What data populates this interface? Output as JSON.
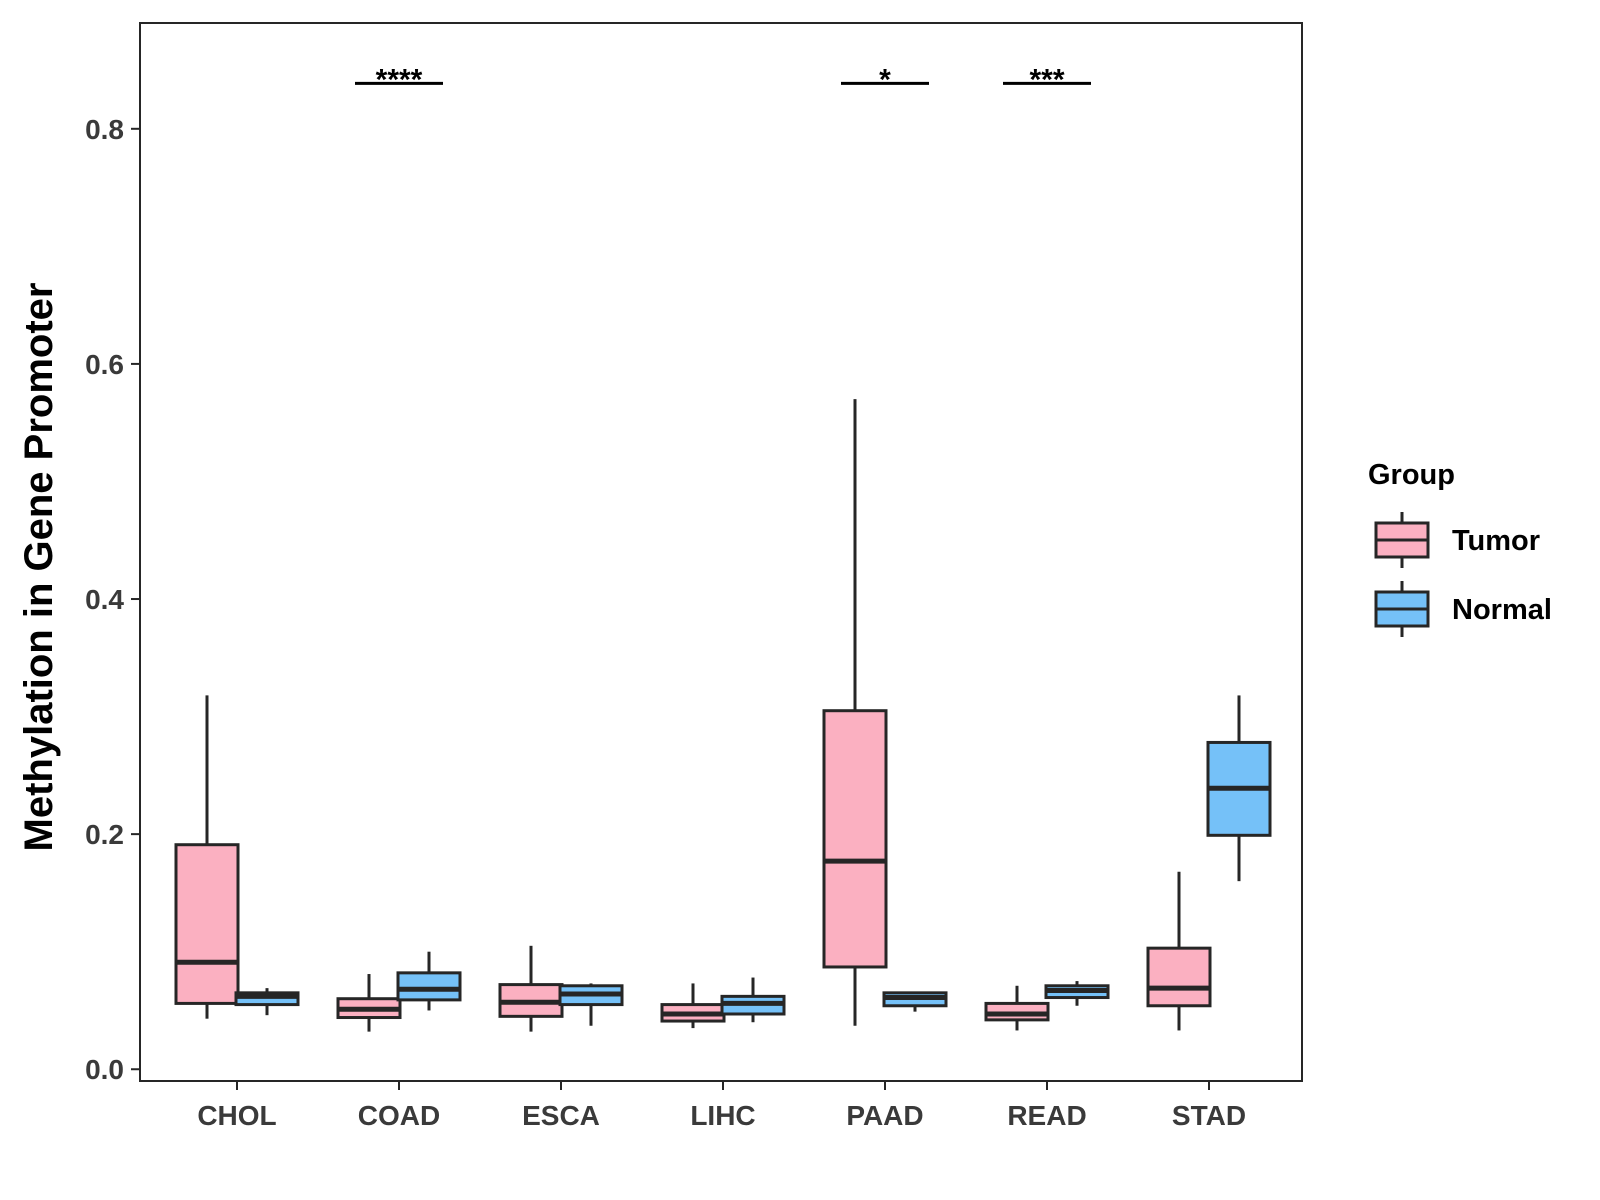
{
  "chart_data": {
    "type": "boxplot",
    "title": "",
    "xlabel": "",
    "ylabel": "Methylation in Gene Promoter",
    "ylim": [
      -0.01,
      0.89
    ],
    "yticks": [
      0.0,
      0.2,
      0.4,
      0.6,
      0.8
    ],
    "ytick_labels": [
      "0.0",
      "0.2",
      "0.4",
      "0.6",
      "0.8"
    ],
    "categories": [
      "CHOL",
      "COAD",
      "ESCA",
      "LIHC",
      "PAAD",
      "READ",
      "STAD"
    ],
    "legend": {
      "title": "Group",
      "position": "right",
      "entries": [
        {
          "name": "Tumor",
          "color": "#FBB0C1"
        },
        {
          "name": "Normal",
          "color": "#75C1F8"
        }
      ]
    },
    "series": [
      {
        "name": "Tumor",
        "color": "#FBB0C1",
        "boxes": [
          {
            "category": "CHOL",
            "min": 0.043,
            "q1": 0.056,
            "median": 0.091,
            "q3": 0.191,
            "max": 0.318
          },
          {
            "category": "COAD",
            "min": 0.032,
            "q1": 0.044,
            "median": 0.051,
            "q3": 0.06,
            "max": 0.081
          },
          {
            "category": "ESCA",
            "min": 0.032,
            "q1": 0.045,
            "median": 0.057,
            "q3": 0.072,
            "max": 0.105
          },
          {
            "category": "LIHC",
            "min": 0.035,
            "q1": 0.041,
            "median": 0.047,
            "q3": 0.055,
            "max": 0.073
          },
          {
            "category": "PAAD",
            "min": 0.037,
            "q1": 0.087,
            "median": 0.177,
            "q3": 0.305,
            "max": 0.57
          },
          {
            "category": "READ",
            "min": 0.033,
            "q1": 0.042,
            "median": 0.047,
            "q3": 0.056,
            "max": 0.071
          },
          {
            "category": "STAD",
            "min": 0.033,
            "q1": 0.054,
            "median": 0.069,
            "q3": 0.103,
            "max": 0.168
          }
        ]
      },
      {
        "name": "Normal",
        "color": "#75C1F8",
        "boxes": [
          {
            "category": "CHOL",
            "min": 0.046,
            "q1": 0.055,
            "median": 0.062,
            "q3": 0.065,
            "max": 0.069
          },
          {
            "category": "COAD",
            "min": 0.05,
            "q1": 0.059,
            "median": 0.068,
            "q3": 0.082,
            "max": 0.1
          },
          {
            "category": "ESCA",
            "min": 0.037,
            "q1": 0.055,
            "median": 0.064,
            "q3": 0.071,
            "max": 0.073
          },
          {
            "category": "LIHC",
            "min": 0.04,
            "q1": 0.047,
            "median": 0.056,
            "q3": 0.062,
            "max": 0.078
          },
          {
            "category": "PAAD",
            "min": 0.049,
            "q1": 0.054,
            "median": 0.061,
            "q3": 0.065,
            "max": 0.066
          },
          {
            "category": "READ",
            "min": 0.054,
            "q1": 0.061,
            "median": 0.067,
            "q3": 0.071,
            "max": 0.075
          },
          {
            "category": "STAD",
            "min": 0.16,
            "q1": 0.199,
            "median": 0.239,
            "q3": 0.278,
            "max": 0.318
          }
        ]
      }
    ],
    "annotations": [
      {
        "category": "COAD",
        "label": "****",
        "y": 0.848
      },
      {
        "category": "PAAD",
        "label": "*",
        "y": 0.848
      },
      {
        "category": "READ",
        "label": "***",
        "y": 0.848
      }
    ]
  }
}
